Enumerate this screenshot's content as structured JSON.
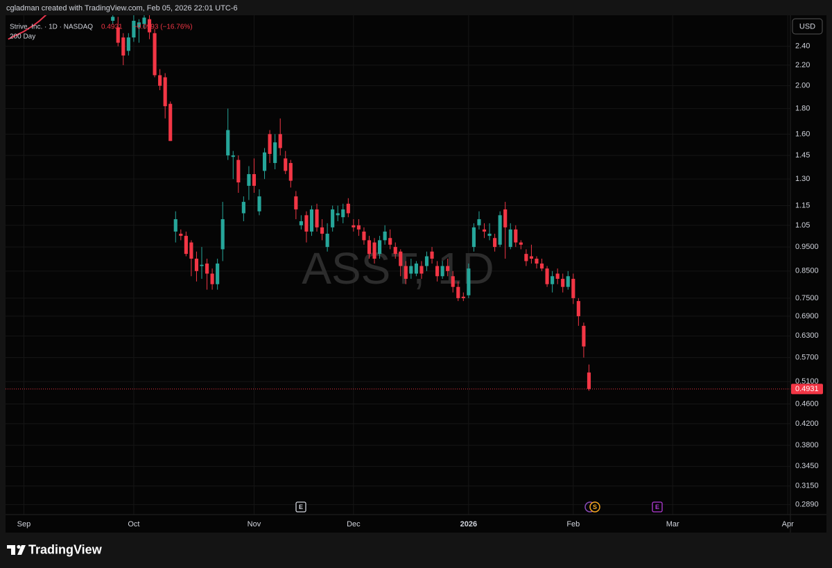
{
  "header": {
    "credit": "cgladman created with TradingView.com, Feb 05, 2026 22:01 UTC-6"
  },
  "footer": {
    "brand": "TradingView"
  },
  "chart_data": {
    "type": "candlestick",
    "title": "Strive, Inc. · 1D · NASDAQ",
    "change_label": "−0.0993 (−16.76%)",
    "watermark": "ASST, 1D",
    "currency": "USD",
    "log_scale": true,
    "grid": true,
    "up_color": "#26a69a",
    "down_color": "#f23645",
    "events": [
      "E",
      "S",
      "E"
    ],
    "ylim": [
      0.276,
      2.77
    ],
    "yticks": [
      {
        "value": 2.4,
        "label": "2.40"
      },
      {
        "value": 2.2,
        "label": "2.20"
      },
      {
        "value": 2.0,
        "label": "2.00"
      },
      {
        "value": 1.8,
        "label": "1.80"
      },
      {
        "value": 1.6,
        "label": "1.60"
      },
      {
        "value": 1.45,
        "label": "1.45"
      },
      {
        "value": 1.3,
        "label": "1.30"
      },
      {
        "value": 1.15,
        "label": "1.15"
      },
      {
        "value": 1.05,
        "label": "1.05"
      },
      {
        "value": 0.95,
        "label": "0.9500"
      },
      {
        "value": 0.85,
        "label": "0.8500"
      },
      {
        "value": 0.75,
        "label": "0.7500"
      },
      {
        "value": 0.69,
        "label": "0.6900"
      },
      {
        "value": 0.63,
        "label": "0.6300"
      },
      {
        "value": 0.57,
        "label": "0.5700"
      },
      {
        "value": 0.51,
        "label": "0.5100"
      },
      {
        "value": 0.46,
        "label": "0.4600"
      },
      {
        "value": 0.42,
        "label": "0.4200"
      },
      {
        "value": 0.38,
        "label": "0.3800"
      },
      {
        "value": 0.345,
        "label": "0.3450"
      },
      {
        "value": 0.315,
        "label": "0.3150"
      },
      {
        "value": 0.289,
        "label": "0.2890"
      }
    ],
    "categories": [
      null,
      null,
      null,
      "Sep",
      null,
      null,
      null,
      null,
      null,
      null,
      null,
      null,
      null,
      null,
      null,
      null,
      null,
      null,
      null,
      null,
      null,
      null,
      null,
      null,
      "Oct",
      null,
      null,
      null,
      null,
      null,
      null,
      null,
      null,
      null,
      null,
      null,
      null,
      null,
      null,
      null,
      null,
      null,
      null,
      null,
      null,
      null,
      null,
      "Nov",
      null,
      null,
      null,
      null,
      null,
      null,
      null,
      null,
      null,
      null,
      null,
      null,
      null,
      null,
      null,
      null,
      null,
      null,
      "Dec",
      null,
      null,
      null,
      null,
      null,
      null,
      null,
      null,
      null,
      null,
      null,
      null,
      null,
      null,
      null,
      null,
      null,
      null,
      null,
      null,
      null,
      "2026",
      null,
      null,
      null,
      null,
      null,
      null,
      null,
      null,
      null,
      null,
      null,
      null,
      null,
      null,
      null,
      null,
      null,
      null,
      null,
      "Feb",
      null,
      null,
      null,
      null,
      null,
      null,
      null,
      null,
      null,
      null,
      null,
      null,
      null,
      null,
      null,
      null,
      null,
      null,
      "Mar",
      null,
      null,
      null,
      null,
      null,
      null,
      null,
      null,
      null,
      null,
      null,
      null,
      null,
      null,
      null,
      null,
      null,
      null,
      null,
      null,
      null,
      "Apr"
    ],
    "open": [
      null,
      null,
      null,
      null,
      null,
      null,
      null,
      null,
      null,
      null,
      null,
      null,
      null,
      null,
      null,
      null,
      null,
      null,
      null,
      null,
      2.7,
      2.62,
      2.5,
      2.35,
      2.5,
      2.62,
      2.66,
      2.72,
      2.55,
      2.1,
      2.08,
      1.84,
      1.02,
      1.01,
      1.0,
      0.97,
      0.9,
      0.87,
      0.88,
      0.84,
      0.8,
      0.94,
      1.45,
      1.44,
      1.42,
      1.11,
      1.26,
      1.33,
      1.12,
      1.35,
      1.6,
      1.4,
      1.6,
      1.43,
      1.4,
      1.2,
      1.05,
      1.1,
      1.02,
      1.13,
      1.04,
      0.95,
      1.04,
      1.1,
      1.09,
      1.16,
      1.05,
      1.05,
      1.02,
      0.98,
      0.97,
      0.92,
      0.98,
      0.99,
      0.95,
      0.93,
      0.87,
      0.84,
      0.84,
      0.87,
      0.87,
      0.93,
      0.87,
      0.83,
      0.87,
      0.83,
      0.79,
      0.755,
      0.76,
      0.95,
      1.05,
      1.03,
      1.0,
      0.99,
      0.96,
      1.13,
      0.95,
      1.03,
      0.97,
      0.92,
      0.91,
      0.9,
      0.88,
      0.86,
      0.8,
      0.84,
      0.82,
      0.79,
      0.82,
      0.74,
      0.66,
      0.532,
      null,
      null,
      null,
      null,
      null,
      null,
      null,
      null,
      null,
      null,
      null,
      null,
      null,
      null,
      null,
      null,
      null,
      null,
      null,
      null,
      null,
      null,
      null,
      null,
      null,
      null,
      null,
      null,
      null,
      null,
      null,
      null,
      null,
      null,
      null,
      null,
      null,
      null
    ],
    "high": [
      null,
      null,
      null,
      null,
      null,
      null,
      null,
      null,
      null,
      null,
      null,
      null,
      null,
      null,
      null,
      null,
      null,
      null,
      null,
      null,
      2.8,
      2.75,
      2.55,
      2.55,
      2.77,
      2.72,
      2.8,
      2.8,
      2.6,
      2.16,
      2.12,
      1.86,
      1.12,
      1.03,
      1.02,
      0.98,
      0.93,
      0.95,
      0.9,
      0.86,
      0.9,
      1.17,
      1.8,
      1.48,
      1.45,
      1.2,
      1.38,
      1.43,
      1.24,
      1.5,
      1.63,
      1.6,
      1.72,
      1.48,
      1.42,
      1.23,
      1.1,
      1.12,
      1.15,
      1.16,
      1.08,
      1.06,
      1.15,
      1.15,
      1.16,
      1.19,
      1.08,
      1.08,
      1.04,
      1.0,
      0.99,
      1.0,
      1.05,
      1.03,
      0.97,
      0.94,
      0.89,
      0.9,
      0.89,
      0.89,
      0.93,
      0.95,
      0.89,
      0.89,
      0.9,
      0.85,
      0.81,
      0.77,
      0.88,
      1.06,
      1.12,
      1.06,
      1.06,
      1.01,
      1.12,
      1.17,
      1.06,
      1.05,
      0.98,
      0.94,
      0.96,
      0.91,
      0.9,
      0.87,
      0.85,
      0.86,
      0.84,
      0.85,
      0.84,
      0.75,
      0.67,
      0.552,
      null,
      null,
      null,
      null,
      null,
      null,
      null,
      null,
      null,
      null,
      null,
      null,
      null,
      null,
      null,
      null,
      null,
      null,
      null,
      null,
      null,
      null,
      null,
      null,
      null,
      null,
      null,
      null,
      null,
      null,
      null,
      null,
      null,
      null,
      null,
      null,
      null,
      null
    ],
    "low": [
      null,
      null,
      null,
      null,
      null,
      null,
      null,
      null,
      null,
      null,
      null,
      null,
      null,
      null,
      null,
      null,
      null,
      null,
      null,
      null,
      2.66,
      2.4,
      2.2,
      2.3,
      2.45,
      2.44,
      2.6,
      2.48,
      2.08,
      1.96,
      1.72,
      1.55,
      0.97,
      0.98,
      0.91,
      0.83,
      0.81,
      0.82,
      0.78,
      0.78,
      0.78,
      0.89,
      1.42,
      1.3,
      1.22,
      1.07,
      1.18,
      1.22,
      1.1,
      1.3,
      1.4,
      1.36,
      1.45,
      1.33,
      1.25,
      1.08,
      1.03,
      0.97,
      1.0,
      1.02,
      0.98,
      0.93,
      1.02,
      1.07,
      1.06,
      1.09,
      1.02,
      1.0,
      0.96,
      0.9,
      0.88,
      0.9,
      0.96,
      0.94,
      0.9,
      0.83,
      0.8,
      0.82,
      0.83,
      0.82,
      0.85,
      0.88,
      0.81,
      0.82,
      0.83,
      0.77,
      0.74,
      0.74,
      0.75,
      0.93,
      1.03,
      0.99,
      0.98,
      0.93,
      0.95,
      0.9,
      0.94,
      0.95,
      0.94,
      0.87,
      0.88,
      0.86,
      0.85,
      0.79,
      0.77,
      0.8,
      0.77,
      0.78,
      0.73,
      0.66,
      0.57,
      0.489,
      null,
      null,
      null,
      null,
      null,
      null,
      null,
      null,
      null,
      null,
      null,
      null,
      null,
      null,
      null,
      null,
      null,
      null,
      null,
      null,
      null,
      null,
      null,
      null,
      null,
      null,
      null,
      null,
      null,
      null,
      null,
      null,
      null,
      null,
      null,
      null,
      null,
      null
    ],
    "close": [
      null,
      null,
      null,
      null,
      null,
      null,
      null,
      null,
      null,
      null,
      null,
      null,
      null,
      null,
      null,
      null,
      null,
      null,
      null,
      null,
      2.75,
      2.44,
      2.3,
      2.5,
      2.7,
      2.68,
      2.74,
      2.56,
      2.1,
      2.0,
      1.82,
      1.55,
      1.08,
      1.0,
      0.92,
      0.9,
      0.85,
      0.875,
      0.84,
      0.8,
      0.88,
      1.08,
      1.63,
      1.45,
      1.28,
      1.17,
      1.33,
      1.26,
      1.2,
      1.47,
      1.46,
      1.54,
      1.5,
      1.35,
      1.29,
      1.13,
      1.07,
      1.02,
      1.13,
      1.04,
      1.01,
      1.01,
      1.13,
      1.11,
      1.13,
      1.11,
      1.04,
      1.03,
      0.98,
      0.92,
      0.9,
      0.98,
      1.02,
      0.96,
      0.92,
      0.87,
      0.82,
      0.87,
      0.88,
      0.84,
      0.91,
      0.9,
      0.83,
      0.87,
      0.85,
      0.79,
      0.75,
      0.75,
      0.86,
      1.04,
      1.08,
      1.02,
      1.01,
      0.95,
      1.1,
      1.04,
      1.03,
      0.97,
      0.96,
      0.89,
      0.9,
      0.88,
      0.86,
      0.8,
      0.83,
      0.82,
      0.79,
      0.83,
      0.75,
      0.69,
      0.6,
      0.4931,
      null,
      null,
      null,
      null,
      null,
      null,
      null,
      null,
      null,
      null,
      null,
      null,
      null,
      null,
      null,
      null,
      null,
      null,
      null,
      null,
      null,
      null,
      null,
      null,
      null,
      null,
      null,
      null,
      null,
      null,
      null,
      null,
      null,
      null,
      null,
      null,
      null,
      null
    ],
    "overlay": {
      "name": "200 Day",
      "color": "#e8354d",
      "values": [
        2.48,
        2.51,
        2.54,
        2.57,
        2.61,
        2.65,
        2.7,
        2.76,
        2.82,
        null,
        null,
        null,
        null,
        null,
        null,
        null,
        null,
        null,
        null,
        null,
        null,
        null,
        null,
        null,
        null,
        null,
        null,
        null,
        null,
        null,
        null,
        null,
        null,
        null,
        null,
        null,
        null,
        null,
        null,
        null,
        null,
        null,
        null,
        null,
        null,
        null,
        null,
        null,
        null,
        null,
        null,
        null,
        null,
        null,
        null,
        null,
        null,
        null,
        null,
        null,
        null,
        null,
        null,
        null,
        null,
        null,
        null,
        null,
        null,
        null,
        null,
        null,
        null,
        null,
        null,
        null,
        null,
        null,
        null,
        null,
        null,
        null,
        null,
        null,
        null,
        null,
        null,
        null,
        null,
        null,
        null,
        null,
        null,
        null,
        null,
        null,
        null,
        null,
        null,
        null,
        null,
        null,
        null,
        null,
        null,
        null,
        null,
        null,
        null,
        null,
        null,
        null,
        null,
        null,
        null,
        null,
        null,
        null,
        null,
        null,
        null,
        null,
        null,
        null,
        null,
        null,
        null,
        null,
        null,
        null,
        null,
        null,
        null,
        null,
        null,
        null,
        null,
        null,
        null,
        null,
        null,
        null,
        null,
        null,
        null,
        null,
        null,
        null,
        null,
        null
      ]
    }
  }
}
